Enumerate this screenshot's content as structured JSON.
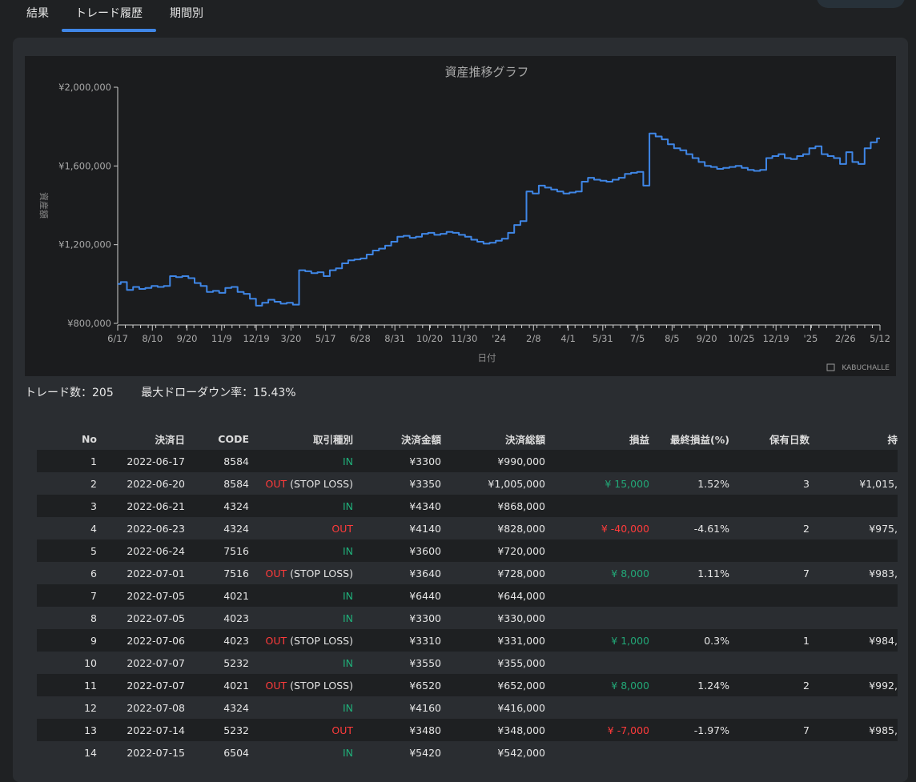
{
  "tabs": [
    {
      "label": "結果"
    },
    {
      "label": "トレード履歴"
    },
    {
      "label": "期間別"
    }
  ],
  "active_tab": "トレード履歴",
  "colors": {
    "accent": "#3f86e6",
    "line": "#3f86e6",
    "in": "#20b07a",
    "out": "#ff3b3b"
  },
  "chart": {
    "watermark": "KABUCHALLE"
  },
  "chart_data": {
    "type": "line",
    "title": "資産推移グラフ",
    "xlabel": "日付",
    "ylabel": "資産額",
    "ylim": [
      800000,
      2000000
    ],
    "y_ticks": [
      800000,
      1200000,
      1600000,
      2000000
    ],
    "y_tick_labels": [
      "¥800,000",
      "¥1,200,000",
      "¥1,600,000",
      "¥2,000,000"
    ],
    "x_tick_labels": [
      "6/17",
      "8/10",
      "9/20",
      "11/9",
      "12/19",
      "3/20",
      "5/17",
      "6/28",
      "8/31",
      "10/20",
      "11/30",
      "'24",
      "2/8",
      "4/1",
      "5/31",
      "7/5",
      "8/5",
      "9/20",
      "10/25",
      "12/19",
      "'25",
      "2/26",
      "5/12"
    ],
    "grid": false,
    "series": [
      {
        "values": [
          1000000,
          1010000,
          970000,
          985000,
          975000,
          980000,
          990000,
          985000,
          990000,
          1040000,
          1035000,
          1040000,
          1030000,
          1005000,
          990000,
          960000,
          965000,
          955000,
          980000,
          985000,
          960000,
          950000,
          925000,
          890000,
          905000,
          920000,
          910000,
          900000,
          905000,
          895000,
          1070000,
          1065000,
          1055000,
          1060000,
          1040000,
          1070000,
          1080000,
          1105000,
          1120000,
          1125000,
          1130000,
          1150000,
          1170000,
          1180000,
          1195000,
          1215000,
          1240000,
          1245000,
          1235000,
          1240000,
          1255000,
          1260000,
          1250000,
          1255000,
          1265000,
          1260000,
          1250000,
          1240000,
          1225000,
          1215000,
          1205000,
          1210000,
          1220000,
          1230000,
          1260000,
          1300000,
          1320000,
          1470000,
          1460000,
          1500000,
          1490000,
          1480000,
          1470000,
          1460000,
          1465000,
          1470000,
          1520000,
          1540000,
          1530000,
          1525000,
          1520000,
          1530000,
          1540000,
          1560000,
          1565000,
          1570000,
          1500000,
          1765000,
          1750000,
          1735000,
          1710000,
          1690000,
          1680000,
          1660000,
          1640000,
          1620000,
          1600000,
          1595000,
          1585000,
          1590000,
          1595000,
          1600000,
          1590000,
          1580000,
          1575000,
          1580000,
          1640000,
          1650000,
          1660000,
          1640000,
          1635000,
          1650000,
          1660000,
          1690000,
          1700000,
          1660000,
          1650000,
          1640000,
          1610000,
          1670000,
          1620000,
          1610000,
          1690000,
          1720000,
          1740000
        ]
      }
    ]
  },
  "stats": {
    "trades": "トレード数：205",
    "max_drawdown": "最大ドローダウン率：15.43%"
  },
  "table": {
    "headers": [
      "No",
      "決済日",
      "CODE",
      "取引種別",
      "決済金額",
      "決済総額",
      "損益",
      "最終損益(%)",
      "保有日数",
      "持"
    ],
    "rows": [
      {
        "no": "1",
        "date": "2022-06-17",
        "code": "8584",
        "type": "IN",
        "note": "",
        "price": "¥3300",
        "total": "¥990,000",
        "pl": "",
        "pl_sign": "",
        "pct": "",
        "days": "",
        "asset": ""
      },
      {
        "no": "2",
        "date": "2022-06-20",
        "code": "8584",
        "type": "OUT",
        "note": " (STOP LOSS)",
        "price": "¥3350",
        "total": "¥1,005,000",
        "pl": "¥ 15,000",
        "pl_sign": "gain",
        "pct": "1.52%",
        "days": "3",
        "asset": "¥1,015,"
      },
      {
        "no": "3",
        "date": "2022-06-21",
        "code": "4324",
        "type": "IN",
        "note": "",
        "price": "¥4340",
        "total": "¥868,000",
        "pl": "",
        "pl_sign": "",
        "pct": "",
        "days": "",
        "asset": ""
      },
      {
        "no": "4",
        "date": "2022-06-23",
        "code": "4324",
        "type": "OUT",
        "note": "",
        "price": "¥4140",
        "total": "¥828,000",
        "pl": "¥ -40,000",
        "pl_sign": "loss",
        "pct": "-4.61%",
        "days": "2",
        "asset": "¥975,"
      },
      {
        "no": "5",
        "date": "2022-06-24",
        "code": "7516",
        "type": "IN",
        "note": "",
        "price": "¥3600",
        "total": "¥720,000",
        "pl": "",
        "pl_sign": "",
        "pct": "",
        "days": "",
        "asset": ""
      },
      {
        "no": "6",
        "date": "2022-07-01",
        "code": "7516",
        "type": "OUT",
        "note": " (STOP LOSS)",
        "price": "¥3640",
        "total": "¥728,000",
        "pl": "¥ 8,000",
        "pl_sign": "gain",
        "pct": "1.11%",
        "days": "7",
        "asset": "¥983,"
      },
      {
        "no": "7",
        "date": "2022-07-05",
        "code": "4021",
        "type": "IN",
        "note": "",
        "price": "¥6440",
        "total": "¥644,000",
        "pl": "",
        "pl_sign": "",
        "pct": "",
        "days": "",
        "asset": ""
      },
      {
        "no": "8",
        "date": "2022-07-05",
        "code": "4023",
        "type": "IN",
        "note": "",
        "price": "¥3300",
        "total": "¥330,000",
        "pl": "",
        "pl_sign": "",
        "pct": "",
        "days": "",
        "asset": ""
      },
      {
        "no": "9",
        "date": "2022-07-06",
        "code": "4023",
        "type": "OUT",
        "note": " (STOP LOSS)",
        "price": "¥3310",
        "total": "¥331,000",
        "pl": "¥ 1,000",
        "pl_sign": "gain",
        "pct": "0.3%",
        "days": "1",
        "asset": "¥984,"
      },
      {
        "no": "10",
        "date": "2022-07-07",
        "code": "5232",
        "type": "IN",
        "note": "",
        "price": "¥3550",
        "total": "¥355,000",
        "pl": "",
        "pl_sign": "",
        "pct": "",
        "days": "",
        "asset": ""
      },
      {
        "no": "11",
        "date": "2022-07-07",
        "code": "4021",
        "type": "OUT",
        "note": " (STOP LOSS)",
        "price": "¥6520",
        "total": "¥652,000",
        "pl": "¥ 8,000",
        "pl_sign": "gain",
        "pct": "1.24%",
        "days": "2",
        "asset": "¥992,"
      },
      {
        "no": "12",
        "date": "2022-07-08",
        "code": "4324",
        "type": "IN",
        "note": "",
        "price": "¥4160",
        "total": "¥416,000",
        "pl": "",
        "pl_sign": "",
        "pct": "",
        "days": "",
        "asset": ""
      },
      {
        "no": "13",
        "date": "2022-07-14",
        "code": "5232",
        "type": "OUT",
        "note": "",
        "price": "¥3480",
        "total": "¥348,000",
        "pl": "¥ -7,000",
        "pl_sign": "loss",
        "pct": "-1.97%",
        "days": "7",
        "asset": "¥985,"
      },
      {
        "no": "14",
        "date": "2022-07-15",
        "code": "6504",
        "type": "IN",
        "note": "",
        "price": "¥5420",
        "total": "¥542,000",
        "pl": "",
        "pl_sign": "",
        "pct": "",
        "days": "",
        "asset": ""
      }
    ]
  }
}
